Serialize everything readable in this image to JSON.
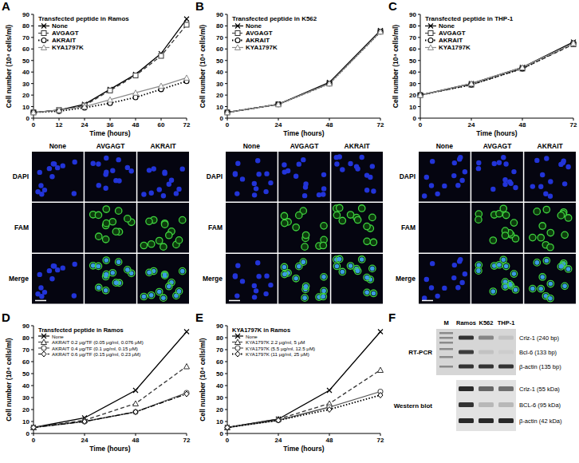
{
  "chart_data": [
    {
      "type": "line",
      "panel_label": "A",
      "title": "Transfected peptide in Ramos",
      "x_label": "Time (hours)",
      "y_label": "Cell number (10⁴ cells/ml)",
      "x": [
        0,
        12,
        24,
        36,
        48,
        60,
        72
      ],
      "xlim": [
        0,
        72
      ],
      "xticks": [
        0,
        12,
        24,
        36,
        48,
        60,
        72
      ],
      "ylim": [
        0,
        90
      ],
      "yticks": [
        0,
        10,
        20,
        30,
        40,
        50,
        60,
        70,
        80,
        90
      ],
      "grid": false,
      "legend": "top-left",
      "series": [
        {
          "name": "None",
          "color": "#000000",
          "marker": "x",
          "line_style": "solid",
          "values": [
            5,
            7,
            12,
            25,
            38,
            56,
            86
          ]
        },
        {
          "name": "AVGAGT",
          "color": "#333333",
          "marker": "square",
          "line_style": "dashed",
          "values": [
            5,
            7,
            11,
            24,
            37,
            54,
            81
          ]
        },
        {
          "name": "AKRAIT",
          "color": "#000000",
          "marker": "circle",
          "line_style": "dotted",
          "values": [
            5,
            6,
            9,
            13,
            18,
            25,
            32
          ]
        },
        {
          "name": "KYA1797K",
          "color": "#8c8c8c",
          "marker": "triangle",
          "line_style": "solid",
          "values": [
            5,
            7,
            10,
            16,
            22,
            28,
            35
          ]
        }
      ]
    },
    {
      "type": "line",
      "panel_label": "B",
      "title": "Transfected peptide in K562",
      "x_label": "Time (hours)",
      "y_label": "Cell number (10⁴ cells/ml)",
      "x": [
        0,
        24,
        48,
        72
      ],
      "xlim": [
        0,
        72
      ],
      "xticks": [
        0,
        24,
        48,
        72
      ],
      "ylim": [
        0,
        90
      ],
      "yticks": [
        0,
        10,
        20,
        30,
        40,
        50,
        60,
        70,
        80,
        90
      ],
      "grid": false,
      "legend": "top-left",
      "series": [
        {
          "name": "None",
          "color": "#000000",
          "marker": "x",
          "line_style": "solid",
          "values": [
            5,
            12,
            31,
            76
          ]
        },
        {
          "name": "AVGAGT",
          "color": "#333333",
          "marker": "square",
          "line_style": "dashed",
          "values": [
            5,
            12,
            30,
            75
          ]
        },
        {
          "name": "AKRAIT",
          "color": "#000000",
          "marker": "circle",
          "line_style": "dotted",
          "values": [
            5,
            12,
            30,
            75
          ]
        },
        {
          "name": "KYA1797K",
          "color": "#8c8c8c",
          "marker": "triangle",
          "line_style": "solid",
          "values": [
            5,
            12,
            30,
            75
          ]
        }
      ]
    },
    {
      "type": "line",
      "panel_label": "C",
      "title": "Transfected peptide in THP-1",
      "x_label": "Time (hours)",
      "y_label": "Cell number (10⁴ cells/ml)",
      "x": [
        0,
        24,
        48,
        72
      ],
      "xlim": [
        0,
        72
      ],
      "xticks": [
        0,
        24,
        48,
        72
      ],
      "ylim": [
        0,
        90
      ],
      "yticks": [
        0,
        10,
        20,
        30,
        40,
        50,
        60,
        70,
        80,
        90
      ],
      "grid": false,
      "legend": "top-left",
      "series": [
        {
          "name": "None",
          "color": "#000000",
          "marker": "x",
          "line_style": "solid",
          "values": [
            20,
            30,
            44,
            66
          ]
        },
        {
          "name": "AVGAGT",
          "color": "#333333",
          "marker": "square",
          "line_style": "dashed",
          "values": [
            20,
            29,
            43,
            64
          ]
        },
        {
          "name": "AKRAIT",
          "color": "#000000",
          "marker": "circle",
          "line_style": "dotted",
          "values": [
            20,
            29,
            43,
            65
          ]
        },
        {
          "name": "KYA1797K",
          "color": "#8c8c8c",
          "marker": "triangle",
          "line_style": "solid",
          "values": [
            20,
            30,
            44,
            65
          ]
        }
      ]
    },
    {
      "type": "line",
      "panel_label": "D",
      "title": "Transfected peptide in Ramos",
      "x_label": "Time (hours)",
      "y_label": "Cell number (10⁴ cells/ml)",
      "x": [
        0,
        24,
        48,
        72
      ],
      "xlim": [
        0,
        72
      ],
      "xticks": [
        0,
        24,
        48,
        72
      ],
      "ylim": [
        0,
        90
      ],
      "yticks": [
        0,
        10,
        20,
        30,
        40,
        50,
        60,
        70,
        80,
        90
      ],
      "grid": false,
      "legend": "top-left",
      "series": [
        {
          "name": "None",
          "color": "#000000",
          "marker": "x",
          "line_style": "solid",
          "values": [
            5,
            13,
            36,
            85
          ]
        },
        {
          "name": "AKRAIT 0.2 μg/TF (0.05 μg/ml, 0.076 μM)",
          "color": "#333333",
          "marker": "triangle",
          "line_style": "dashed",
          "values": [
            5,
            11,
            25,
            56
          ]
        },
        {
          "name": "AKRAIT 0.4 μg/TF (0.1 μg/ml, 0.15 μM)",
          "color": "#555555",
          "marker": "circle",
          "line_style": "solid",
          "values": [
            5,
            10,
            18,
            34
          ]
        },
        {
          "name": "AKRAIT 0.6 μg/TF (0.15 μg/ml, 0.23 μM)",
          "color": "#000000",
          "marker": "diamond",
          "line_style": "dashdot",
          "values": [
            5,
            10,
            18,
            33
          ]
        }
      ]
    },
    {
      "type": "line",
      "panel_label": "E",
      "title": "KYA1797K in Ramos",
      "x_label": "Time (hours)",
      "y_label": "Cell number (10⁴ cells/ml)",
      "x": [
        0,
        24,
        48,
        72
      ],
      "xlim": [
        0,
        72
      ],
      "xticks": [
        0,
        24,
        48,
        72
      ],
      "ylim": [
        0,
        90
      ],
      "yticks": [
        0,
        10,
        20,
        30,
        40,
        50,
        60,
        70,
        80,
        90
      ],
      "grid": false,
      "legend": "top-left",
      "series": [
        {
          "name": "None",
          "color": "#000000",
          "marker": "x",
          "line_style": "solid",
          "values": [
            5,
            12,
            36,
            85
          ]
        },
        {
          "name": "KYA1797K 2.2 μg/ml, 5 μM",
          "color": "#333333",
          "marker": "triangle",
          "line_style": "dashed",
          "values": [
            5,
            12,
            25,
            53
          ]
        },
        {
          "name": "KYA1797K (5.5 μg/ml, 12.5 μM)",
          "color": "#555555",
          "marker": "circle",
          "line_style": "solid",
          "values": [
            5,
            11,
            22,
            35
          ]
        },
        {
          "name": "KYA1797K (11 μg/ml, 25 μM)",
          "color": "#000000",
          "marker": "diamond",
          "line_style": "dotted",
          "values": [
            5,
            11,
            20,
            32
          ]
        }
      ]
    }
  ],
  "microscopy": [
    {
      "columns": [
        "None",
        "AVGAGT",
        "AKRAIT"
      ],
      "rows": [
        "DAPI",
        "FAM",
        "Merge"
      ],
      "fam_signal": [
        false,
        true,
        true
      ]
    },
    {
      "columns": [
        "None",
        "AVGAGT",
        "AKRAIT"
      ],
      "rows": [
        "DAPI",
        "FAM",
        "Merge"
      ],
      "fam_signal": [
        false,
        true,
        true
      ]
    },
    {
      "columns": [
        "None",
        "AVGAGT",
        "AKRAIT"
      ],
      "rows": [
        "DAPI",
        "FAM",
        "Merge"
      ],
      "fam_signal": [
        false,
        true,
        true
      ]
    }
  ],
  "blot": {
    "panel_label": "F",
    "lanes": [
      "M",
      "Ramos",
      "K562",
      "THP-1"
    ],
    "sections": [
      {
        "title": "RT-PCR",
        "bands": [
          {
            "label": "Crlz-1 (240 bp)",
            "intensity": [
              0.85,
              0.45,
              0.15
            ]
          },
          {
            "label": "Bcl-6 (133 bp)",
            "intensity": [
              0.8,
              0.15,
              0.1
            ]
          },
          {
            "label": "β-actin (135 bp)",
            "intensity": [
              0.85,
              0.85,
              0.85
            ]
          }
        ]
      },
      {
        "title": "Western blot",
        "bands": [
          {
            "label": "Crlz-1 (55 kDa)",
            "intensity": [
              0.9,
              0.6,
              0.55
            ]
          },
          {
            "label": "BCL-6 (95 kDa)",
            "intensity": [
              0.85,
              0.2,
              0.2
            ]
          },
          {
            "label": "β-actin (42 kDa)",
            "intensity": [
              0.9,
              0.9,
              0.9
            ]
          }
        ]
      }
    ]
  }
}
